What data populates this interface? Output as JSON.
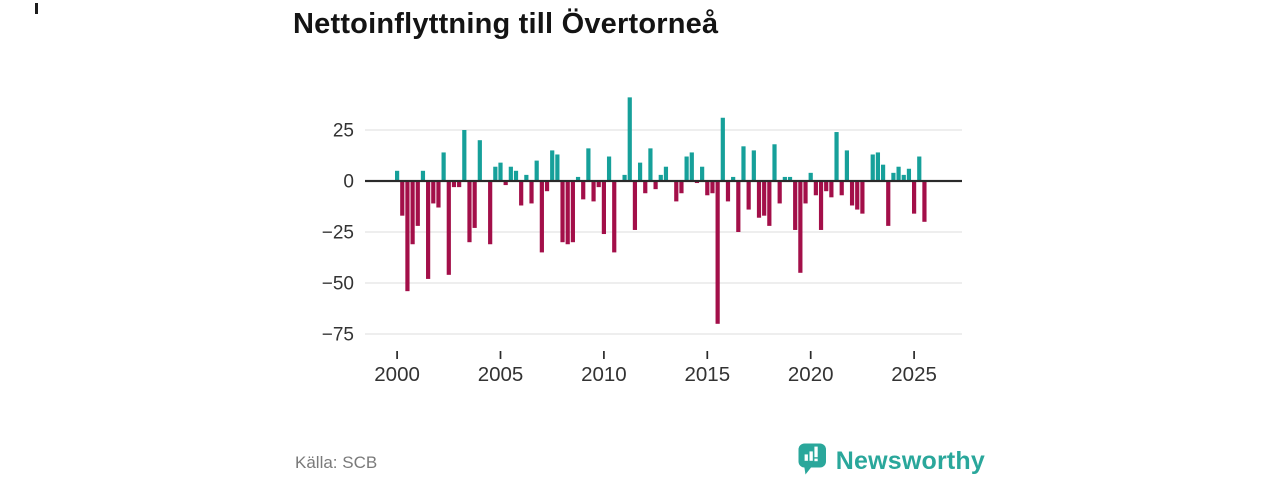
{
  "title": "Nettoinflyttning till Övertorneå",
  "source": {
    "label": "Källa: SCB"
  },
  "branding": {
    "name": "Newsworthy",
    "logo_icon": "speech-bubble-bar-chart-exclamation",
    "color": "#2aa79b"
  },
  "chart_data": {
    "type": "bar",
    "title": "Nettoinflyttning till Övertorneå",
    "xlabel": "",
    "ylabel": "",
    "frequency": "quarterly",
    "start_period": "2000-Q1",
    "end_period": "2025-Q3",
    "x_tick_labels": [
      "2000",
      "2005",
      "2010",
      "2015",
      "2020",
      "2025"
    ],
    "y_ticks": [
      25,
      0,
      -25,
      -50,
      -75
    ],
    "y_tick_labels": [
      "25",
      "0",
      "−25",
      "−50",
      "−75"
    ],
    "ylim": [
      -78,
      44
    ],
    "grid": true,
    "legend": "none",
    "positive_color": "#16a09a",
    "negative_color": "#a30f49",
    "axis_color": "#2a2a2a",
    "grid_color": "#e4e4e4",
    "tick_label_color": "#333333",
    "series": [
      {
        "name": "Nettoinflyttning",
        "values": [
          5,
          -17,
          -54,
          -31,
          -22,
          5,
          -48,
          -11,
          -13,
          14,
          -46,
          -3,
          -3,
          25,
          -30,
          -23,
          20,
          0,
          -31,
          7,
          9,
          -2,
          7,
          5,
          -12,
          3,
          -11,
          10,
          -35,
          -5,
          15,
          13,
          -30,
          -31,
          -30,
          2,
          -9,
          16,
          -10,
          -3,
          -26,
          12,
          -35,
          0,
          3,
          41,
          -24,
          9,
          -6,
          16,
          -4,
          3,
          7,
          0,
          -10,
          -6,
          12,
          14,
          -1,
          7,
          -7,
          -6,
          -70,
          31,
          -10,
          2,
          -25,
          17,
          -14,
          15,
          -18,
          -17,
          -22,
          18,
          -11,
          2,
          2,
          -24,
          -45,
          -11,
          4,
          -7,
          -24,
          -5,
          -8,
          24,
          -7,
          15,
          -12,
          -14,
          -16,
          0,
          13,
          14,
          8,
          -22,
          4,
          7,
          3,
          6,
          -16,
          12,
          -20
        ]
      }
    ]
  }
}
